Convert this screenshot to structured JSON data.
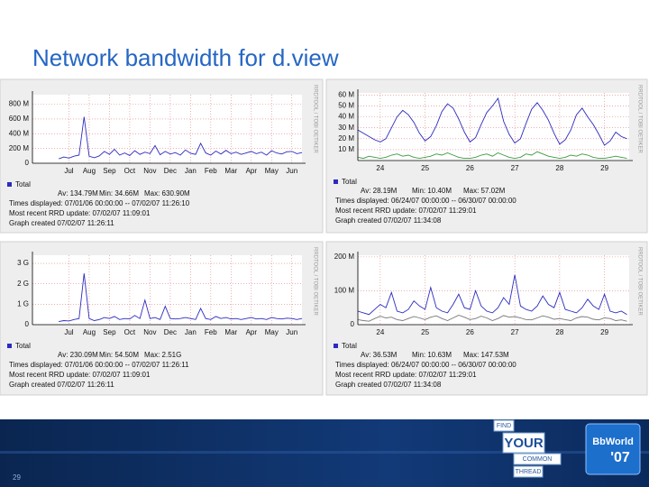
{
  "slide": {
    "title": "Network bandwidth for d.view",
    "page_number": "29",
    "logo": {
      "find": "FIND",
      "your": "YOUR",
      "common": "COMMON",
      "thread": "THREAD",
      "brand": "BbWorld",
      "year": "'07"
    }
  },
  "chart_data": [
    {
      "type": "line",
      "watermark": "RRDTOOL / TOBI OETIKER",
      "grid": true,
      "x": [
        0,
        0.25,
        0.5,
        0.75,
        1,
        1.25,
        1.5,
        1.75,
        2,
        2.25,
        2.5,
        2.75,
        3,
        3.25,
        3.5,
        3.75,
        4,
        4.25,
        4.5,
        4.75,
        5,
        5.25,
        5.5,
        5.75,
        6,
        6.25,
        6.5,
        6.75,
        7,
        7.25,
        7.5,
        7.75,
        8,
        8.25,
        8.5,
        8.75,
        9,
        9.25,
        9.5,
        9.75,
        10,
        10.25,
        10.5,
        10.75,
        11,
        11.25,
        11.5,
        11.75,
        12
      ],
      "xlim": [
        -1.3,
        12
      ],
      "xticks": [
        {
          "value": 0.5,
          "label": "Jul"
        },
        {
          "value": 1.5,
          "label": "Aug"
        },
        {
          "value": 2.5,
          "label": "Sep"
        },
        {
          "value": 3.5,
          "label": "Oct"
        },
        {
          "value": 4.5,
          "label": "Nov"
        },
        {
          "value": 5.5,
          "label": "Dec"
        },
        {
          "value": 6.5,
          "label": "Jan"
        },
        {
          "value": 7.5,
          "label": "Feb"
        },
        {
          "value": 8.5,
          "label": "Mar"
        },
        {
          "value": 9.5,
          "label": "Apr"
        },
        {
          "value": 10.5,
          "label": "May"
        },
        {
          "value": 11.5,
          "label": "Jun"
        }
      ],
      "ylim": [
        0,
        930
      ],
      "yticks": [
        0,
        {
          "value": 200,
          "label": "200 M"
        },
        {
          "value": 400,
          "label": "400 M"
        },
        {
          "value": 600,
          "label": "600 M"
        },
        {
          "value": 800,
          "label": "800 M"
        }
      ],
      "series": [
        {
          "name": "Total",
          "color": "#2b2bc0",
          "values": [
            60,
            85,
            70,
            95,
            110,
            630,
            95,
            75,
            100,
            160,
            120,
            190,
            110,
            140,
            105,
            170,
            120,
            150,
            130,
            240,
            115,
            160,
            125,
            145,
            110,
            180,
            135,
            120,
            270,
            140,
            110,
            165,
            125,
            175,
            130,
            150,
            120,
            140,
            160,
            130,
            150,
            110,
            170,
            140,
            125,
            155,
            160,
            130,
            145
          ]
        }
      ],
      "stats": [
        "Av: 134.79M",
        "Min: 34.66M",
        "Max: 630.90M"
      ],
      "info": [
        "Times displayed: 07/01/06 00:00:00 -- 07/02/07 11:26:10",
        "Most recent RRD update: 07/02/07 11:09:01",
        "Graph created 07/02/07 11:26:11"
      ]
    },
    {
      "type": "line",
      "watermark": "RRDTOOL / TOBI OETIKER",
      "grid": true,
      "x": [
        23.5,
        23.625,
        23.75,
        23.875,
        24,
        24.125,
        24.25,
        24.375,
        24.5,
        24.625,
        24.75,
        24.875,
        25,
        25.125,
        25.25,
        25.375,
        25.5,
        25.625,
        25.75,
        25.875,
        26,
        26.125,
        26.25,
        26.375,
        26.5,
        26.625,
        26.75,
        26.875,
        27,
        27.125,
        27.25,
        27.375,
        27.5,
        27.625,
        27.75,
        27.875,
        28,
        28.125,
        28.25,
        28.375,
        28.5,
        28.625,
        28.75,
        28.875,
        29,
        29.125,
        29.25,
        29.375,
        29.5
      ],
      "xlim": [
        23.5,
        29.55
      ],
      "xticks": [
        24,
        25,
        26,
        27,
        28,
        29
      ],
      "ylim": [
        0,
        62
      ],
      "yticks": [
        {
          "value": 10,
          "label": "10 M"
        },
        {
          "value": 20,
          "label": "20 M"
        },
        {
          "value": 30,
          "label": "30 M"
        },
        {
          "value": 40,
          "label": "40 M"
        },
        {
          "value": 50,
          "label": "50 M"
        },
        {
          "value": 60,
          "label": "60 M"
        }
      ],
      "series": [
        {
          "name": "Total",
          "color": "#2b2bc0",
          "values": [
            28,
            25,
            22,
            19,
            17,
            20,
            30,
            40,
            46,
            42,
            35,
            25,
            18,
            22,
            32,
            45,
            52,
            48,
            38,
            26,
            17,
            21,
            33,
            44,
            50,
            57,
            36,
            24,
            16,
            20,
            34,
            47,
            53,
            46,
            37,
            25,
            15,
            19,
            28,
            42,
            48,
            40,
            33,
            24,
            14,
            18,
            26,
            22,
            20
          ]
        },
        {
          "color": "#3a9a3a",
          "values": [
            3,
            2,
            4,
            3,
            2,
            3,
            5,
            6,
            4,
            5,
            3,
            2,
            3,
            4,
            6,
            5,
            7,
            5,
            3,
            2,
            2,
            3,
            5,
            6,
            4,
            7,
            5,
            3,
            2,
            3,
            6,
            5,
            8,
            6,
            4,
            3,
            2,
            3,
            5,
            4,
            6,
            5,
            3,
            2,
            2,
            3,
            4,
            3,
            2
          ]
        }
      ],
      "stats": [
        "Av: 28.19M",
        "Min: 10.40M",
        "Max: 57.02M"
      ],
      "info": [
        "Times displayed: 06/24/07 00:00:00 -- 06/30/07 00:00:00",
        "Most recent RRD update: 07/02/07 11:29:01",
        "Graph created 07/02/07 11:34:08"
      ]
    },
    {
      "type": "line",
      "watermark": "RRDTOOL / TOBI OETIKER",
      "grid": true,
      "x": [
        0,
        0.25,
        0.5,
        0.75,
        1,
        1.25,
        1.5,
        1.75,
        2,
        2.25,
        2.5,
        2.75,
        3,
        3.25,
        3.5,
        3.75,
        4,
        4.25,
        4.5,
        4.75,
        5,
        5.25,
        5.5,
        5.75,
        6,
        6.25,
        6.5,
        6.75,
        7,
        7.25,
        7.5,
        7.75,
        8,
        8.25,
        8.5,
        8.75,
        9,
        9.25,
        9.5,
        9.75,
        10,
        10.25,
        10.5,
        10.75,
        11,
        11.25,
        11.5,
        11.75,
        12
      ],
      "xlim": [
        -1.3,
        12
      ],
      "xticks": [
        {
          "value": 0.5,
          "label": "Jul"
        },
        {
          "value": 1.5,
          "label": "Aug"
        },
        {
          "value": 2.5,
          "label": "Sep"
        },
        {
          "value": 3.5,
          "label": "Oct"
        },
        {
          "value": 4.5,
          "label": "Nov"
        },
        {
          "value": 5.5,
          "label": "Dec"
        },
        {
          "value": 6.5,
          "label": "Jan"
        },
        {
          "value": 7.5,
          "label": "Feb"
        },
        {
          "value": 8.5,
          "label": "Mar"
        },
        {
          "value": 9.5,
          "label": "Apr"
        },
        {
          "value": 10.5,
          "label": "May"
        },
        {
          "value": 11.5,
          "label": "Jun"
        }
      ],
      "ylim": [
        0,
        3.4
      ],
      "yticks": [
        0,
        {
          "value": 1,
          "label": "1 G"
        },
        {
          "value": 2,
          "label": "2 G"
        },
        {
          "value": 3,
          "label": "3 G"
        }
      ],
      "series": [
        {
          "name": "Total",
          "color": "#2b2bc0",
          "values": [
            0.15,
            0.2,
            0.18,
            0.25,
            0.3,
            2.51,
            0.3,
            0.2,
            0.25,
            0.35,
            0.3,
            0.4,
            0.25,
            0.3,
            0.28,
            0.45,
            0.3,
            1.2,
            0.3,
            0.35,
            0.25,
            0.9,
            0.3,
            0.28,
            0.3,
            0.35,
            0.3,
            0.25,
            0.8,
            0.3,
            0.25,
            0.4,
            0.3,
            0.35,
            0.28,
            0.3,
            0.25,
            0.3,
            0.35,
            0.28,
            0.3,
            0.25,
            0.35,
            0.3,
            0.28,
            0.32,
            0.3,
            0.25,
            0.3
          ]
        }
      ],
      "stats": [
        "Av: 230.09M",
        "Min: 54.50M",
        "Max: 2.51G"
      ],
      "info": [
        "Times displayed: 07/01/06 00:00:00 -- 07/02/07 11:26:11",
        "Most recent RRD update: 07/02/07 11:09:01",
        "Graph created 07/02/07 11:26:11"
      ]
    },
    {
      "type": "line",
      "watermark": "RRDTOOL / TOBI OETIKER",
      "grid": true,
      "x": [
        23.5,
        23.625,
        23.75,
        23.875,
        24,
        24.125,
        24.25,
        24.375,
        24.5,
        24.625,
        24.75,
        24.875,
        25,
        25.125,
        25.25,
        25.375,
        25.5,
        25.625,
        25.75,
        25.875,
        26,
        26.125,
        26.25,
        26.375,
        26.5,
        26.625,
        26.75,
        26.875,
        27,
        27.125,
        27.25,
        27.375,
        27.5,
        27.625,
        27.75,
        27.875,
        28,
        28.125,
        28.25,
        28.375,
        28.5,
        28.625,
        28.75,
        28.875,
        29,
        29.125,
        29.25,
        29.375,
        29.5
      ],
      "xlim": [
        23.5,
        29.55
      ],
      "xticks": [
        24,
        25,
        26,
        27,
        28,
        29
      ],
      "ylim": [
        0,
        205
      ],
      "yticks": [
        0,
        {
          "value": 100,
          "label": "100 M"
        },
        {
          "value": 200,
          "label": "200 M"
        }
      ],
      "series": [
        {
          "name": "Total",
          "color": "#2b2bc0",
          "values": [
            40,
            35,
            30,
            45,
            60,
            50,
            95,
            40,
            35,
            45,
            70,
            55,
            45,
            110,
            50,
            40,
            35,
            60,
            90,
            50,
            45,
            100,
            55,
            40,
            35,
            50,
            80,
            60,
            147,
            55,
            45,
            40,
            55,
            85,
            60,
            50,
            95,
            45,
            40,
            35,
            50,
            75,
            55,
            45,
            90,
            40,
            35,
            40,
            30
          ]
        },
        {
          "color": "#777777",
          "values": [
            15,
            12,
            10,
            18,
            25,
            20,
            22,
            15,
            12,
            18,
            24,
            20,
            15,
            22,
            26,
            18,
            12,
            20,
            28,
            22,
            15,
            18,
            25,
            20,
            12,
            18,
            27,
            22,
            24,
            20,
            15,
            14,
            20,
            26,
            22,
            16,
            18,
            15,
            12,
            20,
            24,
            22,
            16,
            14,
            20,
            18,
            12,
            14,
            10
          ]
        }
      ],
      "stats": [
        "Av: 36.53M",
        "Min: 10.63M",
        "Max: 147.53M"
      ],
      "info": [
        "Times displayed: 06/24/07 00:00:00 -- 06/30/07 00:00:00",
        "Most recent RRD update: 07/02/07 11:29:01",
        "Graph created 07/02/07 11:34:08"
      ]
    }
  ]
}
